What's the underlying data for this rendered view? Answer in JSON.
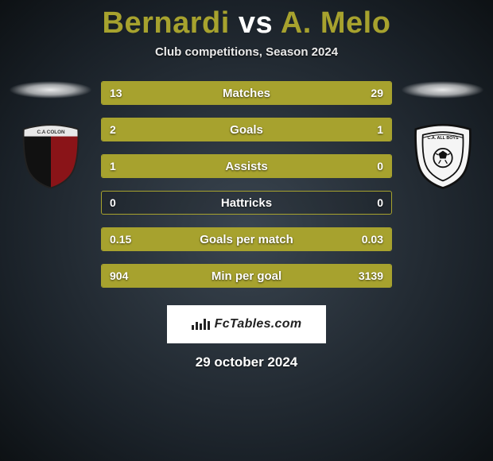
{
  "title": {
    "player1": "Bernardi",
    "vs": "vs",
    "player2": "A. Melo",
    "color": "#a7a22e"
  },
  "subtitle": "Club competitions, Season 2024",
  "stats": [
    {
      "label": "Matches",
      "left_val": "13",
      "right_val": "29",
      "left_pct": 31,
      "right_pct": 69
    },
    {
      "label": "Goals",
      "left_val": "2",
      "right_val": "1",
      "left_pct": 67,
      "right_pct": 33
    },
    {
      "label": "Assists",
      "left_val": "1",
      "right_val": "0",
      "left_pct": 100,
      "right_pct": 0
    },
    {
      "label": "Hattricks",
      "left_val": "0",
      "right_val": "0",
      "left_pct": 0,
      "right_pct": 0
    },
    {
      "label": "Goals per match",
      "left_val": "0.15",
      "right_val": "0.03",
      "left_pct": 83,
      "right_pct": 17
    },
    {
      "label": "Min per goal",
      "left_val": "904",
      "right_val": "3139",
      "left_pct": 22,
      "right_pct": 78
    }
  ],
  "colors": {
    "bar_fill": "#a7a22e",
    "bar_border": "#a7a22e"
  },
  "watermark": "FcTables.com",
  "date": "29 october 2024",
  "crests": {
    "left": {
      "name": "C.A. Colon",
      "top_text": "C.A COLON"
    },
    "right": {
      "name": "C.A. All Boys",
      "top_text": "C.A. ALL BOYS"
    }
  }
}
